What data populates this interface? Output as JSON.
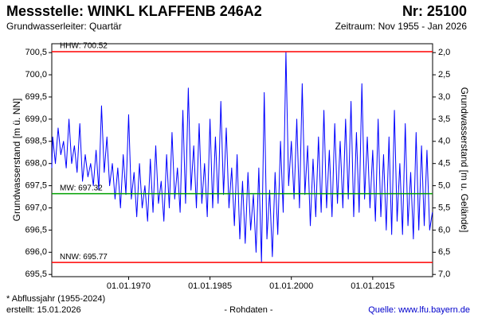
{
  "chart_data": {
    "type": "line",
    "title": "Messstelle: WINKL KLAFFENB 246A2",
    "number": "Nr: 25100",
    "subtitle": "Grundwasserleiter: Quartär",
    "period": "Zeitraum: Nov 1955 - Jan 2026",
    "ylabel": "Grundwasserstand [m ü. NN]",
    "y2label": "Grundwasserstand [m u. Gelände]",
    "footnote": "* Abflussjahr (1955-2024)",
    "created": "erstellt:  15.01.2026",
    "data_note": "- Rohdaten -",
    "source": "Quelle:  www.lfu.bayern.de",
    "xlim": [
      "1955-11-01",
      "2026-01-15"
    ],
    "xticks": [
      {
        "value": "1970-01-01",
        "label": "01.01.1970"
      },
      {
        "value": "1985-01-01",
        "label": "01.01.1985"
      },
      {
        "value": "2000-01-01",
        "label": "01.01.2000"
      },
      {
        "value": "2015-01-01",
        "label": "01.01.2015"
      }
    ],
    "ylim": [
      695.45,
      700.7
    ],
    "yticks": [
      {
        "value": 695.5,
        "label": "695,5"
      },
      {
        "value": 696,
        "label": "696,0"
      },
      {
        "value": 696.5,
        "label": "696,5"
      },
      {
        "value": 697,
        "label": "697,0"
      },
      {
        "value": 697.5,
        "label": "697,5"
      },
      {
        "value": 698,
        "label": "698,0"
      },
      {
        "value": 698.5,
        "label": "698,5"
      },
      {
        "value": 699,
        "label": "699,0"
      },
      {
        "value": 699.5,
        "label": "699,5"
      },
      {
        "value": 700,
        "label": "700,0"
      },
      {
        "value": 700.5,
        "label": "700,5"
      }
    ],
    "y2lim": [
      7.05,
      1.8
    ],
    "y2ticks": [
      {
        "value": 2,
        "label": "2,0"
      },
      {
        "value": 2.5,
        "label": "2,5"
      },
      {
        "value": 3,
        "label": "3,0"
      },
      {
        "value": 3.5,
        "label": "3,5"
      },
      {
        "value": 4,
        "label": "4,0"
      },
      {
        "value": 4.5,
        "label": "4,5"
      },
      {
        "value": 5,
        "label": "5,0"
      },
      {
        "value": 5.5,
        "label": "5,5"
      },
      {
        "value": 6,
        "label": "6,0"
      },
      {
        "value": 6.5,
        "label": "6,5"
      },
      {
        "value": 7,
        "label": "7,0"
      }
    ],
    "ref_lines": [
      {
        "label": "HHW: 700.52",
        "value": 700.52,
        "color": "#ff0000"
      },
      {
        "label": "MW: 697.32",
        "value": 697.32,
        "color": "#00a000"
      },
      {
        "label": "NNW: 695.77",
        "value": 695.77,
        "color": "#ff0000"
      }
    ],
    "x": [
      "1955-11-01",
      "1956-01-01",
      "1956-07-01",
      "1957-01-01",
      "1957-07-01",
      "1958-01-01",
      "1958-07-01",
      "1959-01-01",
      "1959-07-01",
      "1960-01-01",
      "1960-07-01",
      "1961-01-01",
      "1961-07-01",
      "1962-01-01",
      "1962-07-01",
      "1963-01-01",
      "1963-07-01",
      "1964-01-01",
      "1964-07-01",
      "1965-01-01",
      "1965-07-01",
      "1966-01-01",
      "1966-07-01",
      "1967-01-01",
      "1967-07-01",
      "1968-01-01",
      "1968-07-01",
      "1969-01-01",
      "1969-07-01",
      "1970-01-01",
      "1970-07-01",
      "1971-01-01",
      "1971-07-01",
      "1972-01-01",
      "1972-07-01",
      "1973-01-01",
      "1973-07-01",
      "1974-01-01",
      "1974-07-01",
      "1975-01-01",
      "1975-07-01",
      "1976-01-01",
      "1976-07-01",
      "1977-01-01",
      "1977-07-01",
      "1978-01-01",
      "1978-07-01",
      "1979-01-01",
      "1979-07-01",
      "1980-01-01",
      "1980-07-01",
      "1981-01-01",
      "1981-07-01",
      "1982-01-01",
      "1982-07-01",
      "1983-01-01",
      "1983-07-01",
      "1984-01-01",
      "1984-07-01",
      "1985-01-01",
      "1985-07-01",
      "1986-01-01",
      "1986-07-01",
      "1987-01-01",
      "1987-07-01",
      "1988-01-01",
      "1988-07-01",
      "1989-01-01",
      "1989-07-01",
      "1990-01-01",
      "1990-07-01",
      "1991-01-01",
      "1991-07-01",
      "1992-01-01",
      "1992-07-01",
      "1993-01-01",
      "1993-07-01",
      "1994-01-01",
      "1994-07-01",
      "1995-01-01",
      "1995-07-01",
      "1996-01-01",
      "1996-07-01",
      "1997-01-01",
      "1997-07-01",
      "1998-01-01",
      "1998-07-01",
      "1999-01-01",
      "1999-07-01",
      "2000-01-01",
      "2000-07-01",
      "2001-01-01",
      "2001-07-01",
      "2002-01-01",
      "2002-07-01",
      "2003-01-01",
      "2003-07-01",
      "2004-01-01",
      "2004-07-01",
      "2005-01-01",
      "2005-07-01",
      "2006-01-01",
      "2006-07-01",
      "2007-01-01",
      "2007-07-01",
      "2008-01-01",
      "2008-07-01",
      "2009-01-01",
      "2009-07-01",
      "2010-01-01",
      "2010-07-01",
      "2011-01-01",
      "2011-07-01",
      "2012-01-01",
      "2012-07-01",
      "2013-01-01",
      "2013-07-01",
      "2014-01-01",
      "2014-07-01",
      "2015-01-01",
      "2015-07-01",
      "2016-01-01",
      "2016-07-01",
      "2017-01-01",
      "2017-07-01",
      "2018-01-01",
      "2018-07-01",
      "2019-01-01",
      "2019-07-01",
      "2020-01-01",
      "2020-07-01",
      "2021-01-01",
      "2021-07-01",
      "2022-01-01",
      "2022-07-01",
      "2023-01-01",
      "2023-07-01",
      "2024-01-01",
      "2024-07-01",
      "2025-01-01",
      "2025-07-01",
      "2026-01-01"
    ],
    "series": [
      {
        "color": "#0000ff",
        "values": [
          697.9,
          698.6,
          698.0,
          698.8,
          698.2,
          698.5,
          697.9,
          699.0,
          698.0,
          698.4,
          697.8,
          698.9,
          697.6,
          698.2,
          697.7,
          698.0,
          697.5,
          698.3,
          697.4,
          699.3,
          697.8,
          698.6,
          697.5,
          698.0,
          697.2,
          697.9,
          697.0,
          698.2,
          697.3,
          699.1,
          697.2,
          697.8,
          696.8,
          698.0,
          697.0,
          697.5,
          696.7,
          698.1,
          696.9,
          698.4,
          697.1,
          697.6,
          696.7,
          698.2,
          697.0,
          698.7,
          697.2,
          697.9,
          696.9,
          699.2,
          697.1,
          699.7,
          697.4,
          698.4,
          697.0,
          698.9,
          697.1,
          698.0,
          696.8,
          699.0,
          697.0,
          698.6,
          697.1,
          699.4,
          697.3,
          698.8,
          697.0,
          697.9,
          696.6,
          698.2,
          696.3,
          697.6,
          696.2,
          697.8,
          696.5,
          697.3,
          696.0,
          697.9,
          695.77,
          699.6,
          696.3,
          697.4,
          695.9,
          697.8,
          696.4,
          698.5,
          696.9,
          700.52,
          697.5,
          698.5,
          697.2,
          699.0,
          697.0,
          699.8,
          697.3,
          698.4,
          696.6,
          698.1,
          696.8,
          698.6,
          696.9,
          699.2,
          697.0,
          698.3,
          696.8,
          698.9,
          697.1,
          698.5,
          697.0,
          699.0,
          697.2,
          699.4,
          696.8,
          698.7,
          696.9,
          699.8,
          697.2,
          698.6,
          697.0,
          698.3,
          696.7,
          699.0,
          696.8,
          698.2,
          696.5,
          698.6,
          696.4,
          699.2,
          696.7,
          698.0,
          696.4,
          698.9,
          696.6,
          697.8,
          696.3,
          698.7,
          696.5,
          698.4,
          696.6,
          698.3,
          696.5,
          696.9
        ]
      }
    ]
  }
}
